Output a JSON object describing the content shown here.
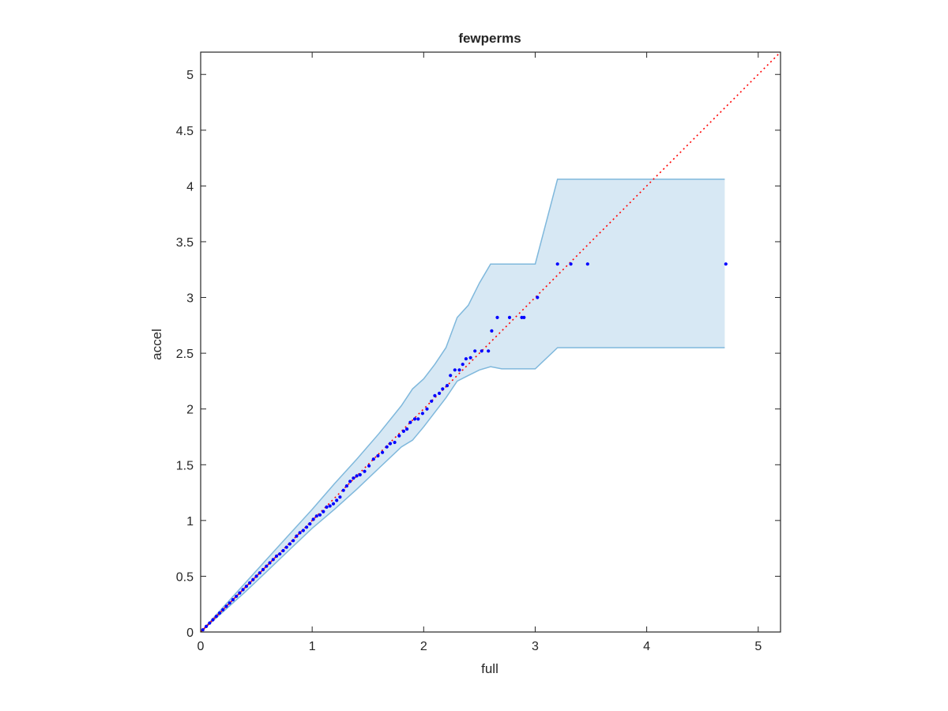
{
  "chart_data": {
    "type": "scatter",
    "title": "fewperms",
    "xlabel": "full",
    "ylabel": "accel",
    "xlim": [
      0,
      5.2
    ],
    "ylim": [
      0,
      5.2
    ],
    "xticks": [
      0,
      1,
      2,
      3,
      4,
      5
    ],
    "yticks": [
      0,
      0.5,
      1,
      1.5,
      2,
      2.5,
      3,
      3.5,
      4,
      4.5,
      5
    ],
    "xtick_labels": [
      "0",
      "1",
      "2",
      "3",
      "4",
      "5"
    ],
    "ytick_labels": [
      "0",
      "0.5",
      "1",
      "1.5",
      "2",
      "2.5",
      "3",
      "3.5",
      "4",
      "4.5",
      "5"
    ],
    "grid": false,
    "reference_line": {
      "style": "dotted",
      "color": "#ff0000",
      "x": [
        0,
        5.2
      ],
      "y": [
        0,
        5.2
      ]
    },
    "band": {
      "color": "#7fb8dc",
      "fill": "#d7e8f4",
      "x": [
        0,
        0.2,
        0.4,
        0.6,
        0.8,
        1.0,
        1.2,
        1.4,
        1.6,
        1.8,
        1.9,
        2.0,
        2.1,
        2.2,
        2.3,
        2.4,
        2.5,
        2.6,
        2.7,
        3.0,
        3.2,
        4.7
      ],
      "upper": [
        0,
        0.22,
        0.44,
        0.66,
        0.88,
        1.1,
        1.33,
        1.55,
        1.78,
        2.03,
        2.18,
        2.27,
        2.4,
        2.55,
        2.82,
        2.93,
        3.13,
        3.3,
        3.3,
        3.3,
        4.06,
        4.06
      ],
      "lower": [
        0,
        0.18,
        0.36,
        0.55,
        0.74,
        0.93,
        1.1,
        1.28,
        1.47,
        1.66,
        1.72,
        1.84,
        1.97,
        2.1,
        2.25,
        2.3,
        2.35,
        2.38,
        2.36,
        2.36,
        2.55,
        2.55
      ]
    },
    "series": [
      {
        "color": "#0000ff",
        "x": [
          0.02,
          0.05,
          0.08,
          0.11,
          0.14,
          0.17,
          0.2,
          0.23,
          0.26,
          0.29,
          0.32,
          0.35,
          0.38,
          0.41,
          0.44,
          0.47,
          0.5,
          0.53,
          0.56,
          0.59,
          0.62,
          0.65,
          0.68,
          0.71,
          0.74,
          0.77,
          0.8,
          0.83,
          0.86,
          0.89,
          0.92,
          0.95,
          0.98,
          1.01,
          1.04,
          1.07,
          1.1,
          1.13,
          1.16,
          1.19,
          1.22,
          1.25,
          1.28,
          1.31,
          1.34,
          1.37,
          1.4,
          1.43,
          1.47,
          1.51,
          1.55,
          1.59,
          1.63,
          1.67,
          1.7,
          1.74,
          1.78,
          1.82,
          1.85,
          1.88,
          1.92,
          1.95,
          1.99,
          2.03,
          2.07,
          2.1,
          2.14,
          2.17,
          2.21,
          2.24,
          2.28,
          2.32,
          2.35,
          2.38,
          2.42,
          2.46,
          2.52,
          2.58,
          2.61,
          2.66,
          2.77,
          2.88,
          2.9,
          3.02,
          3.2,
          3.32,
          3.47,
          4.71
        ],
        "y": [
          0.02,
          0.05,
          0.08,
          0.11,
          0.14,
          0.17,
          0.2,
          0.23,
          0.26,
          0.29,
          0.32,
          0.35,
          0.38,
          0.41,
          0.44,
          0.47,
          0.5,
          0.53,
          0.56,
          0.59,
          0.62,
          0.65,
          0.68,
          0.7,
          0.73,
          0.76,
          0.79,
          0.82,
          0.86,
          0.89,
          0.91,
          0.94,
          0.97,
          1.01,
          1.04,
          1.05,
          1.08,
          1.12,
          1.13,
          1.15,
          1.18,
          1.21,
          1.27,
          1.31,
          1.35,
          1.38,
          1.4,
          1.41,
          1.44,
          1.49,
          1.55,
          1.58,
          1.61,
          1.66,
          1.69,
          1.7,
          1.76,
          1.8,
          1.82,
          1.88,
          1.91,
          1.91,
          1.96,
          2.0,
          2.07,
          2.12,
          2.14,
          2.18,
          2.21,
          2.3,
          2.35,
          2.35,
          2.4,
          2.45,
          2.46,
          2.52,
          2.52,
          2.52,
          2.7,
          2.82,
          2.82,
          2.82,
          2.82,
          3.0,
          3.3,
          3.3,
          3.3,
          3.3
        ]
      }
    ]
  }
}
